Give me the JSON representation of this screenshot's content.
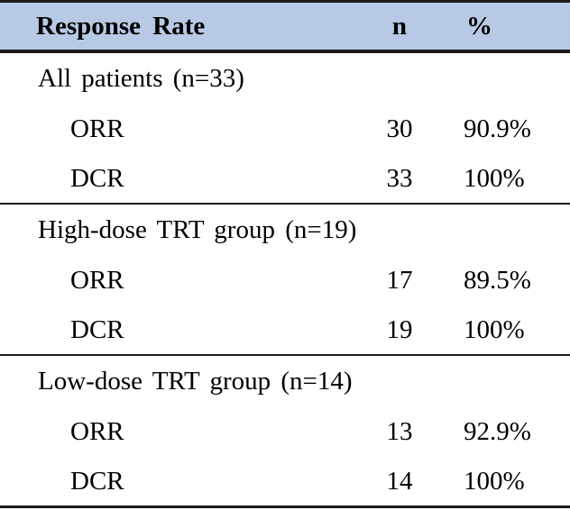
{
  "table": {
    "title": "Response Rate table",
    "columns": [
      "Response Rate",
      "n",
      "%"
    ],
    "colors": {
      "header_background": "#b7c9e5",
      "rule": "#1b1b1b",
      "text": "#000000"
    },
    "sections": [
      {
        "label": "All patients (n=33)",
        "rows": [
          {
            "metric": "ORR",
            "n": "30",
            "pct": "90.9%"
          },
          {
            "metric": "DCR",
            "n": "33",
            "pct": "100%"
          }
        ]
      },
      {
        "label": "High-dose TRT group (n=19)",
        "rows": [
          {
            "metric": "ORR",
            "n": "17",
            "pct": "89.5%"
          },
          {
            "metric": "DCR",
            "n": "19",
            "pct": "100%"
          }
        ]
      },
      {
        "label": "Low-dose TRT group (n=14)",
        "rows": [
          {
            "metric": "ORR",
            "n": "13",
            "pct": "92.9%"
          },
          {
            "metric": "DCR",
            "n": "14",
            "pct": "100%"
          }
        ]
      }
    ]
  }
}
